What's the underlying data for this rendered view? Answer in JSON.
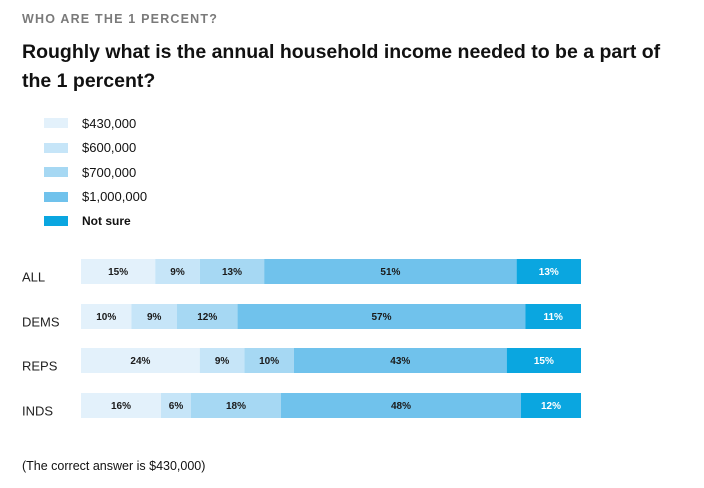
{
  "header": {
    "kicker": "WHO ARE THE 1 PERCENT?",
    "title": "Roughly what is the annual household income needed to be a part of the 1 percent?"
  },
  "footnote": "(The correct answer is $430,000)",
  "colors": {
    "$430,000": "#e3f1fb",
    "$600,000": "#c6e5f8",
    "$700,000": "#a6d8f3",
    "$1,000,000": "#70c2ec",
    "Not sure": "#0aa6e0",
    "label_dark": "#1a1a1a",
    "label_light": "#ffffff"
  },
  "chart_data": {
    "type": "bar",
    "orientation": "horizontal",
    "stacked": true,
    "percent_stacked": true,
    "categories": [
      "ALL",
      "DEMS",
      "REPS",
      "INDS"
    ],
    "series": [
      {
        "name": "$430,000",
        "values": [
          15,
          10,
          24,
          16
        ]
      },
      {
        "name": "$600,000",
        "values": [
          9,
          9,
          9,
          6
        ]
      },
      {
        "name": "$700,000",
        "values": [
          13,
          12,
          10,
          18
        ]
      },
      {
        "name": "$1,000,000",
        "values": [
          51,
          57,
          43,
          48
        ]
      },
      {
        "name": "Not sure",
        "values": [
          13,
          11,
          15,
          12
        ]
      }
    ],
    "value_labels": [
      [
        "15%",
        "9%",
        "13%",
        "51%",
        "13%"
      ],
      [
        "10%",
        "9%",
        "12%",
        "57%",
        "11%"
      ],
      [
        "24%",
        "9%",
        "10%",
        "43%",
        "15%"
      ],
      [
        "16%",
        "6%",
        "18%",
        "48%",
        "12%"
      ]
    ],
    "legend": [
      "$430,000",
      "$600,000",
      "$700,000",
      "$1,000,000",
      "Not sure"
    ],
    "legend_position": "top-left",
    "grid": false,
    "xlim": [
      0,
      100
    ]
  }
}
